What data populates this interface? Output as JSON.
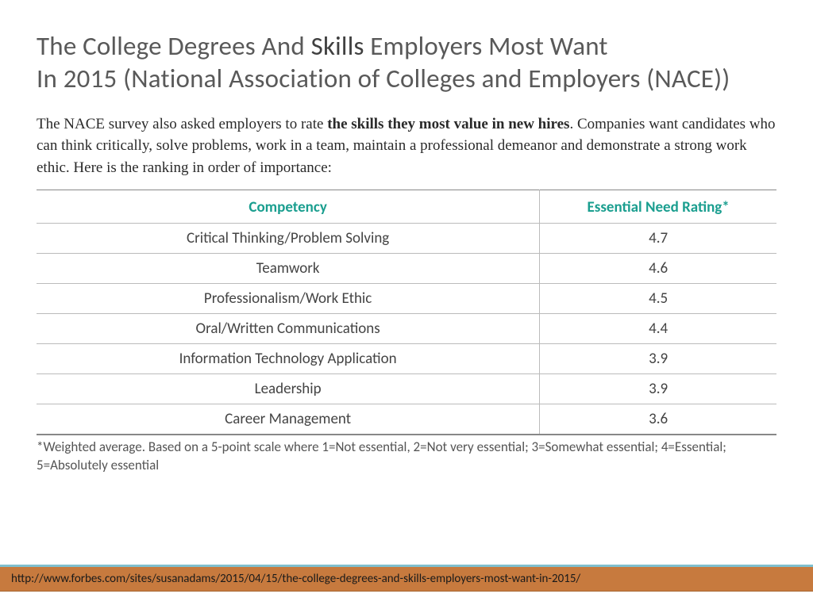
{
  "title": {
    "line1_a": "The College Degrees And ",
    "line1_em": "Skills",
    "line1_b": " Employers Most Want",
    "line2": "In 2015 (National Association of Colleges and Employers (NACE))"
  },
  "body": {
    "pre": "The NACE survey also asked employers to rate ",
    "bold": "the skills they most value in new hires",
    "post": ". Companies want candidates who can think critically, solve problems, work in a team, maintain a professional demeanor and demonstrate a strong work ethic. Here is the ranking in order of importance:"
  },
  "table": {
    "header_color": "#1a9e8f",
    "columns": [
      "Competency",
      "Essential Need Rating*"
    ],
    "col_widths": [
      "68%",
      "32%"
    ],
    "rows": [
      [
        "Critical Thinking/Problem Solving",
        "4.7"
      ],
      [
        "Teamwork",
        "4.6"
      ],
      [
        "Professionalism/Work Ethic",
        "4.5"
      ],
      [
        "Oral/Written Communications",
        "4.4"
      ],
      [
        "Information Technology Application",
        "3.9"
      ],
      [
        "Leadership",
        "3.9"
      ],
      [
        "Career Management",
        "3.6"
      ]
    ],
    "border_color": "#bbbbbb",
    "text_color": "#444444"
  },
  "footnote": "*Weighted average. Based on a 5-point scale where 1=Not essential, 2=Not very essential; 3=Somewhat essential; 4=Essential; 5=Absolutely essential",
  "source": {
    "url": "http://www.forbes.com/sites/susanadams/2015/04/15/the-college-degrees-and-skills-employers-most-want-in-2015/",
    "bar_bg": "#c77a3e",
    "bar_top_border": "#7fbfcf"
  }
}
